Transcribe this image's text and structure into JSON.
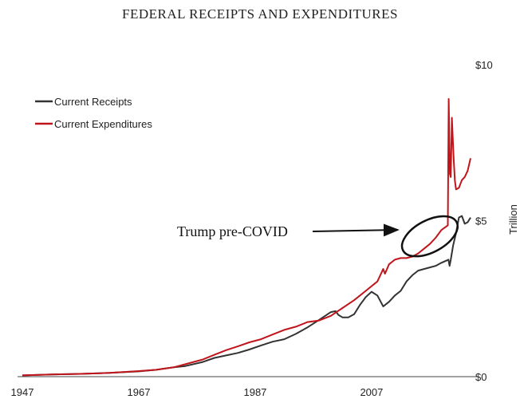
{
  "chart_data": {
    "type": "line",
    "title": "FEDERAL RECEIPTS AND EXPENDITURES",
    "xlabel": "",
    "ylabel": "Trillion",
    "xlim": [
      1947,
      2024
    ],
    "ylim": [
      0,
      10
    ],
    "x_ticks": [
      "1947",
      "1967",
      "1987",
      "2007"
    ],
    "y_ticks": [
      "$0",
      "$5",
      "$10"
    ],
    "legend_position": "top-left",
    "grid": false,
    "series": [
      {
        "name": "Current Receipts",
        "color": "#333333",
        "points": [
          [
            1947,
            0.04
          ],
          [
            1952,
            0.07
          ],
          [
            1957,
            0.09
          ],
          [
            1962,
            0.12
          ],
          [
            1967,
            0.17
          ],
          [
            1970,
            0.22
          ],
          [
            1973,
            0.3
          ],
          [
            1975,
            0.34
          ],
          [
            1978,
            0.47
          ],
          [
            1980,
            0.6
          ],
          [
            1982,
            0.68
          ],
          [
            1984,
            0.76
          ],
          [
            1986,
            0.87
          ],
          [
            1988,
            1.0
          ],
          [
            1990,
            1.12
          ],
          [
            1992,
            1.2
          ],
          [
            1994,
            1.37
          ],
          [
            1996,
            1.58
          ],
          [
            1998,
            1.82
          ],
          [
            2000,
            2.07
          ],
          [
            2000.8,
            2.1
          ],
          [
            2001.3,
            1.98
          ],
          [
            2002,
            1.9
          ],
          [
            2003,
            1.9
          ],
          [
            2004,
            2.0
          ],
          [
            2005,
            2.3
          ],
          [
            2006,
            2.55
          ],
          [
            2007,
            2.72
          ],
          [
            2008,
            2.6
          ],
          [
            2009,
            2.25
          ],
          [
            2010,
            2.4
          ],
          [
            2011,
            2.6
          ],
          [
            2012,
            2.75
          ],
          [
            2013,
            3.05
          ],
          [
            2014,
            3.25
          ],
          [
            2015,
            3.4
          ],
          [
            2016,
            3.45
          ],
          [
            2017,
            3.5
          ],
          [
            2018,
            3.55
          ],
          [
            2019,
            3.65
          ],
          [
            2020.2,
            3.75
          ],
          [
            2020.4,
            3.55
          ],
          [
            2020.6,
            3.75
          ],
          [
            2021,
            4.2
          ],
          [
            2021.5,
            4.6
          ],
          [
            2022,
            5.1
          ],
          [
            2022.5,
            5.15
          ],
          [
            2023,
            4.9
          ],
          [
            2023.5,
            4.95
          ],
          [
            2024,
            5.1
          ]
        ]
      },
      {
        "name": "Current Expenditures",
        "color": "#c0151b",
        "points": [
          [
            1947,
            0.04
          ],
          [
            1952,
            0.07
          ],
          [
            1957,
            0.09
          ],
          [
            1962,
            0.12
          ],
          [
            1967,
            0.18
          ],
          [
            1970,
            0.22
          ],
          [
            1973,
            0.3
          ],
          [
            1975,
            0.4
          ],
          [
            1978,
            0.55
          ],
          [
            1980,
            0.7
          ],
          [
            1982,
            0.85
          ],
          [
            1984,
            0.97
          ],
          [
            1986,
            1.1
          ],
          [
            1988,
            1.2
          ],
          [
            1990,
            1.35
          ],
          [
            1992,
            1.5
          ],
          [
            1994,
            1.6
          ],
          [
            1996,
            1.75
          ],
          [
            1998,
            1.8
          ],
          [
            2000,
            1.95
          ],
          [
            2002,
            2.2
          ],
          [
            2004,
            2.45
          ],
          [
            2006,
            2.75
          ],
          [
            2008,
            3.05
          ],
          [
            2009,
            3.45
          ],
          [
            2009.3,
            3.3
          ],
          [
            2010,
            3.6
          ],
          [
            2011,
            3.75
          ],
          [
            2012,
            3.8
          ],
          [
            2013,
            3.8
          ],
          [
            2014,
            3.85
          ],
          [
            2015,
            3.95
          ],
          [
            2016,
            4.1
          ],
          [
            2017,
            4.25
          ],
          [
            2018,
            4.45
          ],
          [
            2019,
            4.7
          ],
          [
            2020.1,
            4.85
          ],
          [
            2020.25,
            8.9
          ],
          [
            2020.45,
            6.5
          ],
          [
            2020.6,
            6.4
          ],
          [
            2020.8,
            8.3
          ],
          [
            2021.1,
            7.0
          ],
          [
            2021.3,
            6.3
          ],
          [
            2021.5,
            6.0
          ],
          [
            2022,
            6.05
          ],
          [
            2022.5,
            6.3
          ],
          [
            2023,
            6.4
          ],
          [
            2023.5,
            6.6
          ],
          [
            2024,
            7.0
          ]
        ]
      }
    ],
    "annotation": {
      "text": "Trump pre-COVID",
      "points_to": [
        2017,
        4.5
      ]
    }
  }
}
